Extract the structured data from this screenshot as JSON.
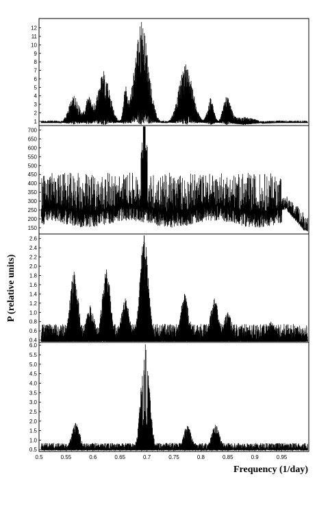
{
  "chart_data": [
    {
      "type": "line",
      "panel": 1,
      "xlim": [
        0.5,
        1.0
      ],
      "ylim": [
        0.5,
        13.1
      ],
      "yticks": [
        "1",
        "2",
        "3",
        "4",
        "5",
        "6",
        "7",
        "8",
        "9",
        "10",
        "11",
        "12"
      ],
      "series": [
        {
          "peaks": [
            {
              "x": 0.565,
              "y": 4.0,
              "w": 0.014
            },
            {
              "x": 0.592,
              "y": 3.6,
              "w": 0.008
            },
            {
              "x": 0.62,
              "y": 6.9,
              "w": 0.016
            },
            {
              "x": 0.66,
              "y": 4.5,
              "w": 0.005
            },
            {
              "x": 0.69,
              "y": 12.7,
              "w": 0.018
            },
            {
              "x": 0.772,
              "y": 7.7,
              "w": 0.018
            },
            {
              "x": 0.818,
              "y": 3.7,
              "w": 0.008
            },
            {
              "x": 0.848,
              "y": 3.7,
              "w": 0.01
            },
            {
              "x": 0.88,
              "y": 1.5,
              "w": 0.03
            }
          ],
          "baseline": 0.8
        }
      ]
    },
    {
      "type": "line",
      "panel": 2,
      "xlim": [
        0.5,
        1.0
      ],
      "ylim": [
        115,
        725
      ],
      "yticks": [
        "150",
        "200",
        "250",
        "300",
        "350",
        "400",
        "450",
        "500",
        "550",
        "600",
        "650",
        "700"
      ],
      "series": [
        {
          "start_level": 260,
          "end_level": 120,
          "max_peak": {
            "x": 0.695,
            "y": 720
          },
          "noise_top": 460
        }
      ]
    },
    {
      "type": "line",
      "panel": 3,
      "xlim": [
        0.5,
        1.0
      ],
      "ylim": [
        0.35,
        2.7
      ],
      "yticks": [
        "0.4",
        "0.6",
        "0.8",
        "1.0",
        "1.2",
        "1.4",
        "1.6",
        "1.8",
        "2.0",
        "2.2",
        "2.4",
        "2.6"
      ],
      "series": [
        {
          "peaks": [
            {
              "x": 0.565,
              "y": 1.88
            },
            {
              "x": 0.595,
              "y": 1.15
            },
            {
              "x": 0.625,
              "y": 1.93
            },
            {
              "x": 0.66,
              "y": 1.3
            },
            {
              "x": 0.695,
              "y": 2.67
            },
            {
              "x": 0.77,
              "y": 1.4
            },
            {
              "x": 0.825,
              "y": 1.3
            },
            {
              "x": 0.85,
              "y": 1.0
            },
            {
              "x": 0.93,
              "y": 0.8
            }
          ],
          "floor": 0.4
        }
      ]
    },
    {
      "type": "line",
      "panel": 4,
      "xlim": [
        0.5,
        1.0
      ],
      "ylim": [
        0.4,
        6.15
      ],
      "yticks": [
        "0.5",
        "1.0",
        "1.5",
        "2.0",
        "2.5",
        "3.0",
        "3.5",
        "4.0",
        "4.5",
        "5.0",
        "5.5",
        "6.0"
      ],
      "series": [
        {
          "peaks": [
            {
              "x": 0.568,
              "y": 1.9
            },
            {
              "x": 0.697,
              "y": 6.05
            },
            {
              "x": 0.775,
              "y": 1.75
            },
            {
              "x": 0.827,
              "y": 1.8
            }
          ],
          "floor": 0.5
        }
      ]
    }
  ],
  "xaxis": {
    "ticks": [
      "0.5",
      "0.55",
      "0.6",
      "0.65",
      "0.7",
      "0.75",
      "0.8",
      "0.85",
      "0.9",
      "0.95"
    ],
    "tick_values": [
      0.5,
      0.55,
      0.6,
      0.65,
      0.7,
      0.75,
      0.8,
      0.85,
      0.9,
      0.95
    ],
    "label": "Frequency (1/day)"
  },
  "yaxis": {
    "label": "P (relative units)"
  }
}
